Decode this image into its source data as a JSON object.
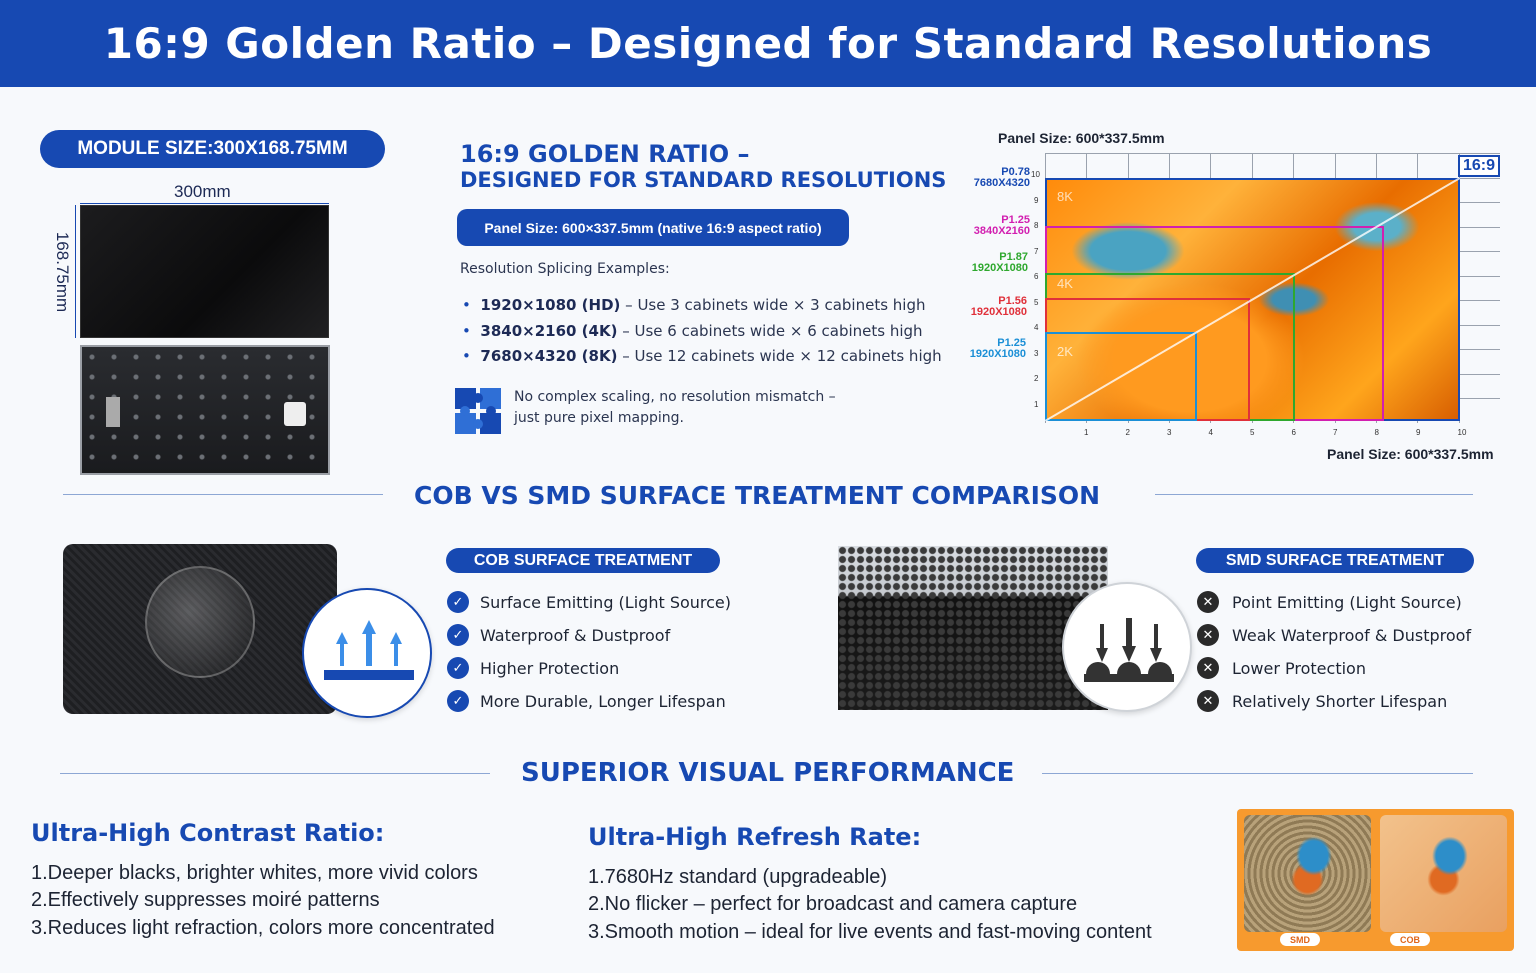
{
  "header": {
    "title": "16:9 Golden Ratio – Designed for Standard Resolutions"
  },
  "module": {
    "size_label": "MODULE SIZE:300X168.75MM",
    "width_label": "300mm",
    "height_label": "168.75mm"
  },
  "golden": {
    "title_line1": "16:9 GOLDEN RATIO –",
    "title_line2": "DESIGNED FOR STANDARD RESOLUTIONS",
    "panel_pill": "Panel Size: 600×337.5mm (native 16:9 aspect ratio)",
    "examples_heading": "Resolution Splicing Examples:",
    "examples": [
      {
        "res": "1920×1080 (HD)",
        "desc": " – Use 3 cabinets wide × 3 cabinets high"
      },
      {
        "res": "3840×2160 (4K)",
        "desc": " – Use 6 cabinets wide × 6 cabinets high"
      },
      {
        "res": "7680×4320 (8K)",
        "desc": " – Use 12 cabinets wide × 12 cabinets high"
      }
    ],
    "note_line1": "No complex scaling, no resolution mismatch –",
    "note_line2": "just pure pixel mapping.",
    "note_icon": "puzzle-icon"
  },
  "grid": {
    "top_label": "Panel Size: 600*337.5mm",
    "bottom_label": "Panel Size: 600*337.5mm",
    "ratio_tag": "16:9",
    "x_ticks": [
      "1",
      "2",
      "3",
      "4",
      "5",
      "6",
      "7",
      "8",
      "9",
      "10"
    ],
    "y_ticks": [
      "10",
      "9",
      "8",
      "7",
      "6",
      "5",
      "4",
      "3",
      "2",
      "1"
    ],
    "zone_labels": [
      "8K",
      "4K",
      "2K"
    ],
    "pitch_labels": [
      {
        "pitch": "P0.78",
        "res": "7680X4320",
        "color": "#1749b2"
      },
      {
        "pitch": "P1.25",
        "res": "3840X2160",
        "color": "#d21fb0"
      },
      {
        "pitch": "P1.87",
        "res": "1920X1080",
        "color": "#2ea82e"
      },
      {
        "pitch": "P1.56",
        "res": "1920X1080",
        "color": "#e0303a"
      },
      {
        "pitch": "P1.25",
        "res": "1920X1080",
        "color": "#1b8fd6"
      }
    ]
  },
  "comparison": {
    "section_title": "COB VS SMD SURFACE TREATMENT COMPARISON",
    "cob": {
      "pill": "COB SURFACE TREATMENT",
      "features": [
        "Surface Emitting (Light Source)",
        "Waterproof & Dustproof",
        "Higher Protection",
        "More Durable, Longer Lifespan"
      ]
    },
    "smd": {
      "pill": "SMD SURFACE TREATMENT",
      "features": [
        "Point Emitting (Light Source)",
        "Weak Waterproof & Dustproof",
        "Lower Protection",
        "Relatively Shorter Lifespan"
      ]
    }
  },
  "performance": {
    "section_title": "SUPERIOR VISUAL PERFORMANCE",
    "contrast": {
      "title": "Ultra-High Contrast Ratio:",
      "lines": [
        "1.Deeper blacks, brighter whites, more vivid colors",
        "2.Effectively suppresses moiré patterns",
        "3.Reduces light refraction, colors more concentrated"
      ]
    },
    "refresh": {
      "title": "Ultra-High Refresh Rate:",
      "lines": [
        "1.7680Hz standard (upgradeable)",
        "2.No flicker – perfect for broadcast and camera capture",
        "3.Smooth motion – ideal for live events and fast-moving content"
      ]
    },
    "compare_tags": [
      "SMD",
      "COB"
    ]
  },
  "colors": {
    "brand": "#1749b2",
    "accent_orange": "#f79a2e"
  }
}
